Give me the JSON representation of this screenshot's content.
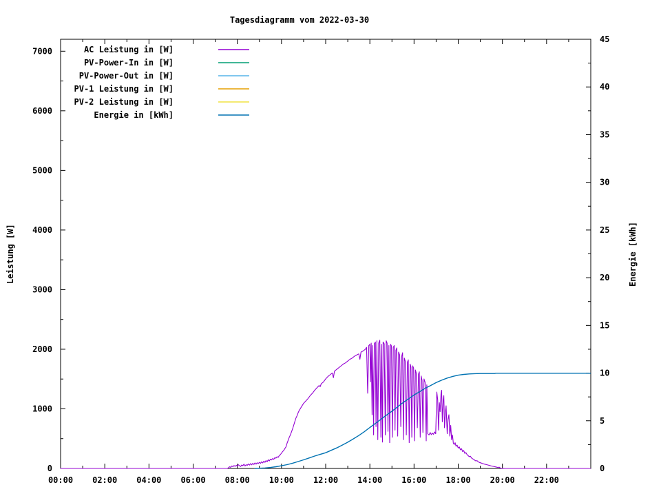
{
  "chart_data": {
    "type": "line",
    "title": "Tagesdiagramm vom 2022-03-30",
    "ylabel_left": "Leistung [W]",
    "ylabel_right": "Energie [kWh]",
    "background_color": "#ffffff",
    "axis_color": "#000000",
    "grid": false,
    "legend_position": "top-left-inside",
    "x_range_hours": [
      0,
      24
    ],
    "x_tick_hours": [
      0,
      2,
      4,
      6,
      8,
      10,
      12,
      14,
      16,
      18,
      20,
      22
    ],
    "x_tick_labels": [
      "00:00",
      "02:00",
      "04:00",
      "06:00",
      "08:00",
      "10:00",
      "12:00",
      "14:00",
      "16:00",
      "18:00",
      "20:00",
      "22:00"
    ],
    "x_minor_tick_hours": [
      1,
      3,
      5,
      7,
      9,
      11,
      13,
      15,
      17,
      19,
      21,
      23
    ],
    "y_left_range": [
      0,
      7200
    ],
    "y_left_ticks": [
      0,
      1000,
      2000,
      3000,
      4000,
      5000,
      6000,
      7000
    ],
    "y_left_tick_labels": [
      "0",
      "1000",
      "2000",
      "3000",
      "4000",
      "5000",
      "6000",
      "7000"
    ],
    "y_left_minor_ticks": [
      500,
      1500,
      2500,
      3500,
      4500,
      5500,
      6500
    ],
    "y_right_range": [
      0,
      45
    ],
    "y_right_ticks": [
      0,
      5,
      10,
      15,
      20,
      25,
      30,
      35,
      40,
      45
    ],
    "y_right_tick_labels": [
      "0",
      "5",
      "10",
      "15",
      "20",
      "25",
      "30",
      "35",
      "40",
      "45"
    ],
    "y_right_minor_ticks": [
      2.5,
      7.5,
      12.5,
      17.5,
      22.5,
      27.5,
      32.5,
      37.5,
      42.5
    ],
    "legend": [
      {
        "label": "AC Leistung in [W]",
        "color": "#9400d3"
      },
      {
        "label": "PV-Power-In in [W]",
        "color": "#009e73"
      },
      {
        "label": "PV-Power-Out in [W]",
        "color": "#56b4e9"
      },
      {
        "label": "PV-1 Leistung in [W]",
        "color": "#e69f00"
      },
      {
        "label": "PV-2 Leistung in [W]",
        "color": "#f0e442"
      },
      {
        "label": "Energie in [kWh]",
        "color": "#0072b2"
      }
    ],
    "series": [
      {
        "name": "AC Leistung in [W]",
        "axis": "left",
        "color": "#9400d3",
        "points": [
          [
            0,
            0
          ],
          [
            7.55,
            0
          ],
          [
            7.6,
            12
          ],
          [
            7.65,
            28
          ],
          [
            7.7,
            18
          ],
          [
            7.75,
            42
          ],
          [
            7.8,
            30
          ],
          [
            7.85,
            48
          ],
          [
            7.9,
            36
          ],
          [
            7.95,
            52
          ],
          [
            8,
            40
          ],
          [
            8.05,
            62
          ],
          [
            8.1,
            45
          ],
          [
            8.15,
            32
          ],
          [
            8.2,
            58
          ],
          [
            8.25,
            46
          ],
          [
            8.3,
            72
          ],
          [
            8.35,
            42
          ],
          [
            8.4,
            62
          ],
          [
            8.45,
            52
          ],
          [
            8.5,
            76
          ],
          [
            8.55,
            56
          ],
          [
            8.6,
            82
          ],
          [
            8.65,
            60
          ],
          [
            8.7,
            86
          ],
          [
            8.75,
            66
          ],
          [
            8.8,
            92
          ],
          [
            8.85,
            72
          ],
          [
            8.9,
            96
          ],
          [
            8.95,
            82
          ],
          [
            9,
            102
          ],
          [
            9.05,
            86
          ],
          [
            9.1,
            112
          ],
          [
            9.15,
            92
          ],
          [
            9.2,
            122
          ],
          [
            9.25,
            102
          ],
          [
            9.3,
            132
          ],
          [
            9.35,
            112
          ],
          [
            9.4,
            146
          ],
          [
            9.45,
            126
          ],
          [
            9.5,
            156
          ],
          [
            9.55,
            142
          ],
          [
            9.6,
            166
          ],
          [
            9.65,
            152
          ],
          [
            9.7,
            182
          ],
          [
            9.75,
            172
          ],
          [
            9.8,
            196
          ],
          [
            9.85,
            186
          ],
          [
            9.9,
            216
          ],
          [
            9.95,
            232
          ],
          [
            10,
            256
          ],
          [
            10.05,
            282
          ],
          [
            10.1,
            302
          ],
          [
            10.15,
            332
          ],
          [
            10.2,
            362
          ],
          [
            10.25,
            422
          ],
          [
            10.3,
            472
          ],
          [
            10.35,
            522
          ],
          [
            10.4,
            562
          ],
          [
            10.45,
            612
          ],
          [
            10.5,
            662
          ],
          [
            10.55,
            722
          ],
          [
            10.6,
            782
          ],
          [
            10.65,
            842
          ],
          [
            10.7,
            882
          ],
          [
            10.75,
            932
          ],
          [
            10.8,
            972
          ],
          [
            10.85,
            1002
          ],
          [
            10.9,
            1032
          ],
          [
            10.95,
            1062
          ],
          [
            11,
            1092
          ],
          [
            11.1,
            1132
          ],
          [
            11.2,
            1172
          ],
          [
            11.3,
            1222
          ],
          [
            11.4,
            1262
          ],
          [
            11.5,
            1312
          ],
          [
            11.6,
            1352
          ],
          [
            11.7,
            1392
          ],
          [
            11.75,
            1372
          ],
          [
            11.8,
            1422
          ],
          [
            11.9,
            1452
          ],
          [
            12,
            1502
          ],
          [
            12.1,
            1542
          ],
          [
            12.2,
            1572
          ],
          [
            12.3,
            1602
          ],
          [
            12.35,
            1522
          ],
          [
            12.4,
            1632
          ],
          [
            12.5,
            1662
          ],
          [
            12.6,
            1692
          ],
          [
            12.7,
            1722
          ],
          [
            12.8,
            1752
          ],
          [
            12.9,
            1772
          ],
          [
            13,
            1802
          ],
          [
            13.1,
            1832
          ],
          [
            13.2,
            1852
          ],
          [
            13.3,
            1882
          ],
          [
            13.4,
            1902
          ],
          [
            13.5,
            1922
          ],
          [
            13.55,
            1832
          ],
          [
            13.6,
            1952
          ],
          [
            13.7,
            1972
          ],
          [
            13.8,
            2002
          ],
          [
            13.85,
            2032
          ],
          [
            13.9,
            1262
          ],
          [
            13.95,
            2062
          ],
          [
            14,
            2082
          ],
          [
            14.03,
            1452
          ],
          [
            14.06,
            2102
          ],
          [
            14.1,
            902
          ],
          [
            14.13,
            2062
          ],
          [
            14.17,
            562
          ],
          [
            14.2,
            2092
          ],
          [
            14.25,
            2122
          ],
          [
            14.28,
            702
          ],
          [
            14.32,
            2142
          ],
          [
            14.36,
            482
          ],
          [
            14.4,
            2102
          ],
          [
            14.45,
            2152
          ],
          [
            14.5,
            522
          ],
          [
            14.53,
            2082
          ],
          [
            14.57,
            442
          ],
          [
            14.6,
            2122
          ],
          [
            14.65,
            2092
          ],
          [
            14.7,
            562
          ],
          [
            14.74,
            2142
          ],
          [
            14.78,
            2102
          ],
          [
            14.82,
            622
          ],
          [
            14.86,
            2062
          ],
          [
            14.9,
            432
          ],
          [
            14.94,
            2082
          ],
          [
            14.98,
            2052
          ],
          [
            15.02,
            522
          ],
          [
            15.06,
            2032
          ],
          [
            15.1,
            2062
          ],
          [
            15.14,
            642
          ],
          [
            15.18,
            1982
          ],
          [
            15.22,
            2022
          ],
          [
            15.26,
            542
          ],
          [
            15.3,
            1952
          ],
          [
            15.35,
            1902
          ],
          [
            15.4,
            702
          ],
          [
            15.44,
            1882
          ],
          [
            15.48,
            1942
          ],
          [
            15.52,
            482
          ],
          [
            15.56,
            1852
          ],
          [
            15.6,
            1802
          ],
          [
            15.65,
            562
          ],
          [
            15.7,
            1782
          ],
          [
            15.74,
            1822
          ],
          [
            15.78,
            432
          ],
          [
            15.82,
            1752
          ],
          [
            15.86,
            1702
          ],
          [
            15.9,
            522
          ],
          [
            15.94,
            1722
          ],
          [
            15.98,
            1682
          ],
          [
            16.02,
            462
          ],
          [
            16.06,
            1652
          ],
          [
            16.1,
            1602
          ],
          [
            16.15,
            682
          ],
          [
            16.2,
            1582
          ],
          [
            16.24,
            1622
          ],
          [
            16.28,
            522
          ],
          [
            16.32,
            1552
          ],
          [
            16.36,
            1482
          ],
          [
            16.4,
            602
          ],
          [
            16.45,
            1502
          ],
          [
            16.5,
            1442
          ],
          [
            16.55,
            462
          ],
          [
            16.58,
            1402
          ],
          [
            16.62,
            582
          ],
          [
            16.68,
            562
          ],
          [
            16.73,
            602
          ],
          [
            16.78,
            568
          ],
          [
            16.83,
            592
          ],
          [
            16.88,
            572
          ],
          [
            16.93,
            612
          ],
          [
            16.98,
            582
          ],
          [
            17.03,
            1282
          ],
          [
            17.07,
            1152
          ],
          [
            17.11,
            642
          ],
          [
            17.15,
            1102
          ],
          [
            17.18,
            952
          ],
          [
            17.22,
            1252
          ],
          [
            17.25,
            1312
          ],
          [
            17.28,
            782
          ],
          [
            17.32,
            1152
          ],
          [
            17.35,
            1222
          ],
          [
            17.38,
            682
          ],
          [
            17.42,
            952
          ],
          [
            17.45,
            1052
          ],
          [
            17.5,
            582
          ],
          [
            17.54,
            822
          ],
          [
            17.58,
            902
          ],
          [
            17.62,
            542
          ],
          [
            17.66,
            722
          ],
          [
            17.7,
            482
          ],
          [
            17.74,
            562
          ],
          [
            17.78,
            422
          ],
          [
            17.82,
            402
          ],
          [
            17.86,
            432
          ],
          [
            17.9,
            372
          ],
          [
            17.95,
            392
          ],
          [
            18,
            342
          ],
          [
            18.05,
            362
          ],
          [
            18.1,
            312
          ],
          [
            18.15,
            332
          ],
          [
            18.2,
            282
          ],
          [
            18.25,
            302
          ],
          [
            18.3,
            252
          ],
          [
            18.35,
            266
          ],
          [
            18.4,
            232
          ],
          [
            18.45,
            216
          ],
          [
            18.5,
            196
          ],
          [
            18.55,
            206
          ],
          [
            18.6,
            176
          ],
          [
            18.65,
            162
          ],
          [
            18.7,
            152
          ],
          [
            18.75,
            136
          ],
          [
            18.8,
            126
          ],
          [
            18.85,
            132
          ],
          [
            18.9,
            112
          ],
          [
            18.95,
            102
          ],
          [
            19,
            96
          ],
          [
            19.1,
            82
          ],
          [
            19.2,
            72
          ],
          [
            19.3,
            62
          ],
          [
            19.4,
            52
          ],
          [
            19.5,
            42
          ],
          [
            19.6,
            34
          ],
          [
            19.7,
            26
          ],
          [
            19.8,
            16
          ],
          [
            19.85,
            22
          ],
          [
            19.9,
            8
          ],
          [
            19.95,
            4
          ],
          [
            20,
            2
          ],
          [
            20.1,
            0
          ],
          [
            23.98,
            0
          ]
        ]
      },
      {
        "name": "Energie in [kWh]",
        "axis": "right",
        "color": "#0072b2",
        "points": [
          [
            8.8,
            0
          ],
          [
            9,
            0.02
          ],
          [
            9.25,
            0.05
          ],
          [
            9.5,
            0.1
          ],
          [
            9.75,
            0.18
          ],
          [
            10,
            0.28
          ],
          [
            10.25,
            0.4
          ],
          [
            10.5,
            0.55
          ],
          [
            10.75,
            0.72
          ],
          [
            11,
            0.9
          ],
          [
            11.25,
            1.1
          ],
          [
            11.5,
            1.3
          ],
          [
            11.75,
            1.47
          ],
          [
            12,
            1.65
          ],
          [
            12.25,
            1.9
          ],
          [
            12.5,
            2.15
          ],
          [
            12.75,
            2.45
          ],
          [
            13,
            2.75
          ],
          [
            13.25,
            3.1
          ],
          [
            13.5,
            3.45
          ],
          [
            13.75,
            3.85
          ],
          [
            14,
            4.3
          ],
          [
            14.25,
            4.72
          ],
          [
            14.5,
            5.15
          ],
          [
            14.75,
            5.58
          ],
          [
            15,
            6
          ],
          [
            15.25,
            6.45
          ],
          [
            15.5,
            6.9
          ],
          [
            15.75,
            7.3
          ],
          [
            16,
            7.7
          ],
          [
            16.25,
            8.05
          ],
          [
            16.5,
            8.4
          ],
          [
            16.75,
            8.7
          ],
          [
            17,
            9
          ],
          [
            17.25,
            9.25
          ],
          [
            17.5,
            9.48
          ],
          [
            17.75,
            9.65
          ],
          [
            18,
            9.78
          ],
          [
            18.25,
            9.86
          ],
          [
            18.5,
            9.91
          ],
          [
            18.75,
            9.94
          ],
          [
            19,
            9.95
          ],
          [
            19.65,
            9.95
          ],
          [
            19.7,
            9.98
          ],
          [
            23.98,
            9.98
          ]
        ]
      }
    ]
  }
}
